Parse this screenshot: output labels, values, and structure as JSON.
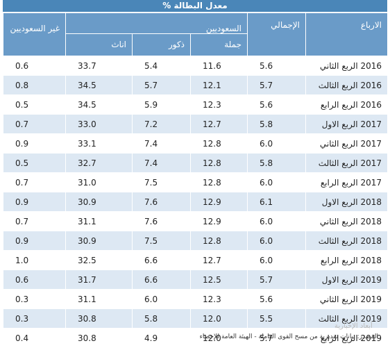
{
  "title": "معدل البطالة %",
  "headers": {
    "period": "الارباع",
    "total": "الإجمالي",
    "saudis": "السعوديين",
    "saudis_total": "جملة",
    "saudis_male": "ذكور",
    "saudis_female": "اناث",
    "non_saudis": "غير السعوديين"
  },
  "rows": [
    {
      "period": "2016 الربع الثاني",
      "total": "5.6",
      "saudi_total": "11.6",
      "male": "5.4",
      "female": "33.7",
      "non_saudi": "0.6"
    },
    {
      "period": "2016 الربع الثالث",
      "total": "5.7",
      "saudi_total": "12.1",
      "male": "5.7",
      "female": "34.5",
      "non_saudi": "0.8"
    },
    {
      "period": "2016 الربع الرابع",
      "total": "5.6",
      "saudi_total": "12.3",
      "male": "5.9",
      "female": "34.5",
      "non_saudi": "0.5"
    },
    {
      "period": "2017 الربع الاول",
      "total": "5.8",
      "saudi_total": "12.7",
      "male": "7.2",
      "female": "33.0",
      "non_saudi": "0.7"
    },
    {
      "period": "2017 الربع الثاني",
      "total": "6.0",
      "saudi_total": "12.8",
      "male": "7.4",
      "female": "33.1",
      "non_saudi": "0.9"
    },
    {
      "period": "2017 الربع الثالث",
      "total": "5.8",
      "saudi_total": "12.8",
      "male": "7.4",
      "female": "32.7",
      "non_saudi": "0.5"
    },
    {
      "period": "2017 الربع الرابع",
      "total": "6.0",
      "saudi_total": "12.8",
      "male": "7.5",
      "female": "31.0",
      "non_saudi": "0.7"
    },
    {
      "period": "2018 الربع الاول",
      "total": "6.1",
      "saudi_total": "12.9",
      "male": "7.6",
      "female": "30.9",
      "non_saudi": "0.9"
    },
    {
      "period": "2018 الربع الثاني",
      "total": "6.0",
      "saudi_total": "12.9",
      "male": "7.6",
      "female": "31.1",
      "non_saudi": "0.7"
    },
    {
      "period": "2018 الربع الثالث",
      "total": "6.0",
      "saudi_total": "12.8",
      "male": "7.5",
      "female": "30.9",
      "non_saudi": "0.9"
    },
    {
      "period": "2018 الربع الرابع",
      "total": "6.0",
      "saudi_total": "12.7",
      "male": "6.6",
      "female": "32.5",
      "non_saudi": "1.0"
    },
    {
      "period": "2019 الربع الاول",
      "total": "5.7",
      "saudi_total": "12.5",
      "male": "6.6",
      "female": "31.7",
      "non_saudi": "0.6"
    },
    {
      "period": "2019 الربع الثاني",
      "total": "5.6",
      "saudi_total": "12.3",
      "male": "6.0",
      "female": "31.1",
      "non_saudi": "0.3"
    },
    {
      "period": "2019 الربع الثالث",
      "total": "5.5",
      "saudi_total": "12.0",
      "male": "5.8",
      "female": "30.8",
      "non_saudi": "0.3"
    },
    {
      "period": "2019 الربع الرابع",
      "total": "5.7",
      "saudi_total": "12.0",
      "male": "4.9",
      "female": "30.8",
      "non_saudi": "0.4"
    }
  ],
  "source": "المصدر: بيانات تقديرية من مسح القوى العاملة - الهيئة العامة للإحصاء",
  "watermark": "أبعاد الإخبارية",
  "colors": {
    "title_bg": "#4a86b8",
    "header_bg": "#6a9bc8",
    "stripe": "#dde8f3"
  }
}
